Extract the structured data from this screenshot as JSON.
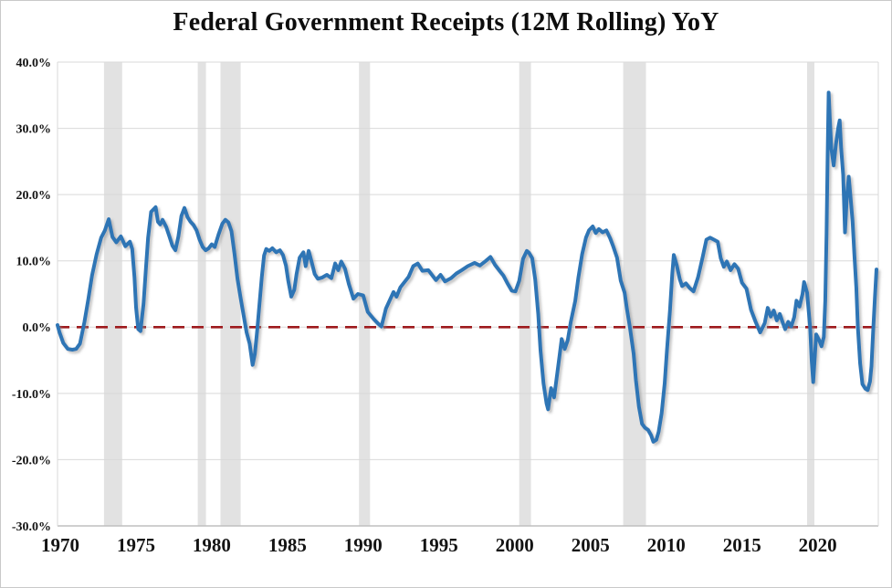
{
  "chart_data": {
    "type": "line",
    "title": "Federal Government Receipts (12M Rolling) YoY",
    "xlabel": "",
    "ylabel": "",
    "x_domain": [
      1969.82,
      2024.0
    ],
    "ylim": [
      -30,
      40
    ],
    "grid": "horizontal",
    "legend": "none",
    "x_ticks": [
      {
        "value": 1970,
        "label": "1970"
      },
      {
        "value": 1975,
        "label": "1975"
      },
      {
        "value": 1980,
        "label": "1980"
      },
      {
        "value": 1985,
        "label": "1985"
      },
      {
        "value": 1990,
        "label": "1990"
      },
      {
        "value": 1995,
        "label": "1995"
      },
      {
        "value": 2000,
        "label": "2000"
      },
      {
        "value": 2005,
        "label": "2005"
      },
      {
        "value": 2010,
        "label": "2010"
      },
      {
        "value": 2015,
        "label": "2015"
      },
      {
        "value": 2020,
        "label": "2020"
      }
    ],
    "y_ticks": [
      {
        "value": 40,
        "label": "40.0%"
      },
      {
        "value": 30,
        "label": "30.0%"
      },
      {
        "value": 20,
        "label": "20.0%"
      },
      {
        "value": 10,
        "label": "10.0%"
      },
      {
        "value": 0,
        "label": "0.0%"
      },
      {
        "value": -10,
        "label": "-10.0%"
      },
      {
        "value": -20,
        "label": "-20.0%"
      },
      {
        "value": -30,
        "label": "-30.0%"
      }
    ],
    "zero_line": {
      "value": 0,
      "style": "dashed",
      "color": "#9E1B1E"
    },
    "recession_bands": [
      [
        1972.89,
        1974.09
      ],
      [
        1979.08,
        1979.62
      ],
      [
        1980.58,
        1981.91
      ],
      [
        1989.72,
        1990.45
      ],
      [
        2000.3,
        2001.08
      ],
      [
        2007.16,
        2008.66
      ],
      [
        2019.3,
        2019.78
      ]
    ],
    "series": [
      {
        "name": "Federal Government Receipts (12M Rolling) YoY",
        "color": "#2E74B5",
        "points": [
          [
            1969.82,
            0.3
          ],
          [
            1969.95,
            -0.8
          ],
          [
            1970.2,
            -2.4
          ],
          [
            1970.5,
            -3.3
          ],
          [
            1970.8,
            -3.4
          ],
          [
            1971.05,
            -3.3
          ],
          [
            1971.3,
            -2.5
          ],
          [
            1971.6,
            0.8
          ],
          [
            1971.85,
            4.2
          ],
          [
            1972.1,
            7.8
          ],
          [
            1972.4,
            11.0
          ],
          [
            1972.7,
            13.5
          ],
          [
            1972.95,
            14.6
          ],
          [
            1973.2,
            16.3
          ],
          [
            1973.45,
            13.6
          ],
          [
            1973.7,
            12.8
          ],
          [
            1974.0,
            13.7
          ],
          [
            1974.3,
            12.2
          ],
          [
            1974.6,
            12.9
          ],
          [
            1974.75,
            11.8
          ],
          [
            1974.9,
            7.5
          ],
          [
            1975.0,
            3.0
          ],
          [
            1975.15,
            -0.3
          ],
          [
            1975.3,
            -0.6
          ],
          [
            1975.5,
            3.5
          ],
          [
            1975.65,
            8.6
          ],
          [
            1975.8,
            13.5
          ],
          [
            1976.0,
            17.4
          ],
          [
            1976.3,
            18.1
          ],
          [
            1976.45,
            15.9
          ],
          [
            1976.6,
            15.5
          ],
          [
            1976.75,
            16.2
          ],
          [
            1977.0,
            15.1
          ],
          [
            1977.2,
            13.7
          ],
          [
            1977.4,
            12.3
          ],
          [
            1977.6,
            11.6
          ],
          [
            1977.8,
            13.7
          ],
          [
            1978.0,
            16.8
          ],
          [
            1978.2,
            18.0
          ],
          [
            1978.4,
            16.6
          ],
          [
            1978.6,
            15.9
          ],
          [
            1978.8,
            15.4
          ],
          [
            1979.0,
            14.6
          ],
          [
            1979.2,
            13.2
          ],
          [
            1979.4,
            12.1
          ],
          [
            1979.6,
            11.6
          ],
          [
            1979.8,
            11.9
          ],
          [
            1980.0,
            12.5
          ],
          [
            1980.2,
            12.1
          ],
          [
            1980.45,
            14.0
          ],
          [
            1980.7,
            15.6
          ],
          [
            1980.9,
            16.2
          ],
          [
            1981.1,
            15.8
          ],
          [
            1981.3,
            14.5
          ],
          [
            1981.5,
            11.1
          ],
          [
            1981.7,
            7.3
          ],
          [
            1981.9,
            4.5
          ],
          [
            1982.1,
            1.8
          ],
          [
            1982.3,
            -0.8
          ],
          [
            1982.5,
            -2.5
          ],
          [
            1982.7,
            -5.7
          ],
          [
            1982.85,
            -4.0
          ],
          [
            1983.0,
            -0.5
          ],
          [
            1983.15,
            3.5
          ],
          [
            1983.3,
            7.5
          ],
          [
            1983.45,
            10.8
          ],
          [
            1983.6,
            11.8
          ],
          [
            1983.8,
            11.5
          ],
          [
            1984.0,
            11.9
          ],
          [
            1984.25,
            11.3
          ],
          [
            1984.5,
            11.6
          ],
          [
            1984.7,
            10.9
          ],
          [
            1984.9,
            9.3
          ],
          [
            1985.05,
            7.0
          ],
          [
            1985.25,
            4.6
          ],
          [
            1985.45,
            5.6
          ],
          [
            1985.6,
            8.0
          ],
          [
            1985.8,
            10.5
          ],
          [
            1986.05,
            11.3
          ],
          [
            1986.2,
            9.2
          ],
          [
            1986.4,
            11.5
          ],
          [
            1986.6,
            9.8
          ],
          [
            1986.8,
            8.0
          ],
          [
            1987.0,
            7.3
          ],
          [
            1987.3,
            7.5
          ],
          [
            1987.6,
            7.9
          ],
          [
            1987.9,
            7.4
          ],
          [
            1988.15,
            9.6
          ],
          [
            1988.35,
            8.6
          ],
          [
            1988.55,
            9.9
          ],
          [
            1988.8,
            8.8
          ],
          [
            1989.05,
            6.5
          ],
          [
            1989.35,
            4.3
          ],
          [
            1989.65,
            5.0
          ],
          [
            1990.0,
            4.8
          ],
          [
            1990.3,
            2.3
          ],
          [
            1990.7,
            1.2
          ],
          [
            1991.0,
            0.5
          ],
          [
            1991.2,
            0.1
          ],
          [
            1991.5,
            2.8
          ],
          [
            1992.0,
            5.3
          ],
          [
            1992.2,
            4.6
          ],
          [
            1992.45,
            6.0
          ],
          [
            1993.0,
            7.6
          ],
          [
            1993.3,
            9.2
          ],
          [
            1993.6,
            9.6
          ],
          [
            1993.9,
            8.5
          ],
          [
            1994.3,
            8.6
          ],
          [
            1994.8,
            7.1
          ],
          [
            1995.1,
            7.9
          ],
          [
            1995.4,
            6.9
          ],
          [
            1995.8,
            7.4
          ],
          [
            1996.15,
            8.1
          ],
          [
            1996.5,
            8.6
          ],
          [
            1996.9,
            9.2
          ],
          [
            1997.35,
            9.7
          ],
          [
            1997.7,
            9.3
          ],
          [
            1998.1,
            10.0
          ],
          [
            1998.4,
            10.6
          ],
          [
            1998.7,
            9.4
          ],
          [
            1999.0,
            8.5
          ],
          [
            1999.25,
            7.8
          ],
          [
            1999.5,
            6.7
          ],
          [
            1999.8,
            5.5
          ],
          [
            2000.05,
            5.4
          ],
          [
            2000.3,
            7.0
          ],
          [
            2000.55,
            10.3
          ],
          [
            2000.8,
            11.5
          ],
          [
            2000.95,
            11.2
          ],
          [
            2001.15,
            10.4
          ],
          [
            2001.35,
            7.2
          ],
          [
            2001.55,
            2.0
          ],
          [
            2001.7,
            -3.5
          ],
          [
            2001.9,
            -8.5
          ],
          [
            2002.1,
            -11.5
          ],
          [
            2002.2,
            -12.4
          ],
          [
            2002.4,
            -9.2
          ],
          [
            2002.6,
            -10.6
          ],
          [
            2002.75,
            -8.0
          ],
          [
            2002.95,
            -4.5
          ],
          [
            2003.1,
            -1.8
          ],
          [
            2003.3,
            -3.3
          ],
          [
            2003.5,
            -2.0
          ],
          [
            2003.7,
            0.8
          ],
          [
            2004.0,
            4.0
          ],
          [
            2004.2,
            7.5
          ],
          [
            2004.45,
            11.0
          ],
          [
            2004.7,
            13.5
          ],
          [
            2004.9,
            14.6
          ],
          [
            2005.15,
            15.2
          ],
          [
            2005.35,
            14.2
          ],
          [
            2005.55,
            14.8
          ],
          [
            2005.8,
            14.3
          ],
          [
            2006.05,
            14.6
          ],
          [
            2006.3,
            13.4
          ],
          [
            2006.5,
            12.2
          ],
          [
            2006.75,
            10.5
          ],
          [
            2007.0,
            7.0
          ],
          [
            2007.25,
            5.2
          ],
          [
            2007.4,
            2.8
          ],
          [
            2007.6,
            0.0
          ],
          [
            2007.85,
            -4.0
          ],
          [
            2008.0,
            -8.0
          ],
          [
            2008.2,
            -12.0
          ],
          [
            2008.4,
            -14.6
          ],
          [
            2008.6,
            -15.2
          ],
          [
            2008.8,
            -15.5
          ],
          [
            2009.0,
            -16.3
          ],
          [
            2009.15,
            -17.3
          ],
          [
            2009.35,
            -17.0
          ],
          [
            2009.5,
            -15.8
          ],
          [
            2009.7,
            -13.0
          ],
          [
            2009.9,
            -8.5
          ],
          [
            2010.05,
            -3.5
          ],
          [
            2010.25,
            2.5
          ],
          [
            2010.4,
            8.0
          ],
          [
            2010.5,
            10.9
          ],
          [
            2010.7,
            9.3
          ],
          [
            2010.9,
            7.2
          ],
          [
            2011.05,
            6.2
          ],
          [
            2011.3,
            6.6
          ],
          [
            2011.55,
            5.9
          ],
          [
            2011.8,
            5.4
          ],
          [
            2012.1,
            7.5
          ],
          [
            2012.4,
            10.5
          ],
          [
            2012.65,
            13.2
          ],
          [
            2012.9,
            13.5
          ],
          [
            2013.15,
            13.2
          ],
          [
            2013.4,
            12.9
          ],
          [
            2013.6,
            10.4
          ],
          [
            2013.8,
            9.1
          ],
          [
            2014.0,
            9.9
          ],
          [
            2014.25,
            8.6
          ],
          [
            2014.5,
            9.5
          ],
          [
            2014.75,
            8.8
          ],
          [
            2015.0,
            6.7
          ],
          [
            2015.3,
            5.8
          ],
          [
            2015.6,
            2.6
          ],
          [
            2015.9,
            0.8
          ],
          [
            2016.2,
            -0.8
          ],
          [
            2016.5,
            0.6
          ],
          [
            2016.7,
            2.9
          ],
          [
            2016.9,
            1.6
          ],
          [
            2017.1,
            2.5
          ],
          [
            2017.3,
            1.0
          ],
          [
            2017.5,
            2.0
          ],
          [
            2017.7,
            0.6
          ],
          [
            2017.85,
            -0.3
          ],
          [
            2018.05,
            0.8
          ],
          [
            2018.25,
            0.1
          ],
          [
            2018.45,
            1.5
          ],
          [
            2018.6,
            4.0
          ],
          [
            2018.8,
            3.1
          ],
          [
            2019.0,
            5.0
          ],
          [
            2019.1,
            6.8
          ],
          [
            2019.3,
            5.2
          ],
          [
            2019.5,
            0.0
          ],
          [
            2019.6,
            -5.0
          ],
          [
            2019.7,
            -8.3
          ],
          [
            2019.9,
            -1.1
          ],
          [
            2020.1,
            -2.0
          ],
          [
            2020.25,
            -2.9
          ],
          [
            2020.4,
            -1.5
          ],
          [
            2020.5,
            4.0
          ],
          [
            2020.58,
            14.0
          ],
          [
            2020.65,
            25.0
          ],
          [
            2020.72,
            35.4
          ],
          [
            2020.8,
            31.5
          ],
          [
            2020.9,
            26.9
          ],
          [
            2021.05,
            24.4
          ],
          [
            2021.2,
            27.5
          ],
          [
            2021.35,
            30.0
          ],
          [
            2021.45,
            31.2
          ],
          [
            2021.55,
            27.0
          ],
          [
            2021.68,
            23.0
          ],
          [
            2021.8,
            14.3
          ],
          [
            2021.92,
            19.5
          ],
          [
            2022.05,
            22.7
          ],
          [
            2022.15,
            20.1
          ],
          [
            2022.3,
            16.0
          ],
          [
            2022.42,
            10.9
          ],
          [
            2022.55,
            6.0
          ],
          [
            2022.65,
            0.0
          ],
          [
            2022.8,
            -5.5
          ],
          [
            2022.95,
            -8.6
          ],
          [
            2023.15,
            -9.3
          ],
          [
            2023.3,
            -9.5
          ],
          [
            2023.45,
            -8.2
          ],
          [
            2023.55,
            -5.9
          ],
          [
            2023.65,
            -1.0
          ],
          [
            2023.78,
            4.5
          ],
          [
            2023.88,
            8.7
          ]
        ]
      }
    ],
    "colors": {
      "line": "#2E74B5",
      "zero_line": "#9E1B1E",
      "recession_band": "#E2E2E2",
      "gridline": "#D9D9D9",
      "axis_line": "#BFBFBF",
      "tick_text": "#141414",
      "background": "#FFFFFF"
    }
  }
}
